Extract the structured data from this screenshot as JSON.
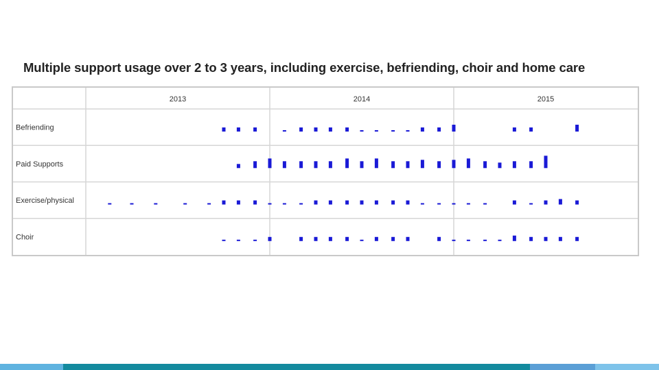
{
  "slide": {
    "title": "Multiple support usage over 2 to 3 years, including exercise, befriending, choir and home care"
  },
  "chart_data": {
    "type": "bar",
    "title": "Multiple support usage over 2 to 3 years, including exercise, befriending, choir and home care",
    "periods": [
      "2013",
      "2014",
      "2015"
    ],
    "x_domain": [
      2013.0,
      2016.0
    ],
    "series_order": [
      "Befriending",
      "Paid Supports",
      "Exercise/physical",
      "Choir"
    ],
    "color": "#1a1ad6",
    "grid": true,
    "series": [
      {
        "name": "Befriending",
        "marks": [
          [
            2013.75,
            1
          ],
          [
            2013.83,
            1
          ],
          [
            2013.92,
            1
          ],
          [
            2014.08,
            0.5
          ],
          [
            2014.17,
            1
          ],
          [
            2014.25,
            1
          ],
          [
            2014.33,
            1
          ],
          [
            2014.42,
            1
          ],
          [
            2014.5,
            0.5
          ],
          [
            2014.58,
            0.5
          ],
          [
            2014.67,
            0.5
          ],
          [
            2014.75,
            0.5
          ],
          [
            2014.83,
            1
          ],
          [
            2014.92,
            1
          ],
          [
            2015.0,
            2
          ],
          [
            2015.33,
            1
          ],
          [
            2015.42,
            1
          ],
          [
            2015.67,
            2
          ]
        ]
      },
      {
        "name": "Paid Supports",
        "marks": [
          [
            2013.83,
            1
          ],
          [
            2013.92,
            2
          ],
          [
            2014.0,
            3
          ],
          [
            2014.08,
            2
          ],
          [
            2014.17,
            2
          ],
          [
            2014.25,
            2
          ],
          [
            2014.33,
            2
          ],
          [
            2014.42,
            3
          ],
          [
            2014.5,
            2
          ],
          [
            2014.58,
            3
          ],
          [
            2014.67,
            2
          ],
          [
            2014.75,
            2
          ],
          [
            2014.83,
            2.5
          ],
          [
            2014.92,
            2
          ],
          [
            2015.0,
            2.5
          ],
          [
            2015.08,
            3
          ],
          [
            2015.17,
            2
          ],
          [
            2015.25,
            1.5
          ],
          [
            2015.33,
            2
          ],
          [
            2015.42,
            2
          ],
          [
            2015.5,
            4
          ]
        ]
      },
      {
        "name": "Exercise/physical",
        "marks": [
          [
            2013.13,
            0.5
          ],
          [
            2013.25,
            0.5
          ],
          [
            2013.38,
            0.5
          ],
          [
            2013.54,
            0.5
          ],
          [
            2013.67,
            0.5
          ],
          [
            2013.75,
            1
          ],
          [
            2013.83,
            1
          ],
          [
            2013.92,
            1
          ],
          [
            2014.0,
            0.5
          ],
          [
            2014.08,
            0.5
          ],
          [
            2014.17,
            0.5
          ],
          [
            2014.25,
            1
          ],
          [
            2014.33,
            1
          ],
          [
            2014.42,
            1
          ],
          [
            2014.5,
            1
          ],
          [
            2014.58,
            1
          ],
          [
            2014.67,
            1
          ],
          [
            2014.75,
            1
          ],
          [
            2014.83,
            0.5
          ],
          [
            2014.92,
            0.5
          ],
          [
            2015.0,
            0.5
          ],
          [
            2015.08,
            0.5
          ],
          [
            2015.17,
            0.5
          ],
          [
            2015.33,
            1
          ],
          [
            2015.42,
            0.5
          ],
          [
            2015.5,
            1
          ],
          [
            2015.58,
            1.5
          ],
          [
            2015.67,
            1
          ]
        ]
      },
      {
        "name": "Choir",
        "marks": [
          [
            2013.75,
            0.5
          ],
          [
            2013.83,
            0.5
          ],
          [
            2013.92,
            0.5
          ],
          [
            2014.0,
            1
          ],
          [
            2014.17,
            1
          ],
          [
            2014.25,
            1
          ],
          [
            2014.33,
            1
          ],
          [
            2014.42,
            1
          ],
          [
            2014.5,
            0.5
          ],
          [
            2014.58,
            1
          ],
          [
            2014.67,
            1
          ],
          [
            2014.75,
            1
          ],
          [
            2014.92,
            1
          ],
          [
            2015.0,
            0.5
          ],
          [
            2015.08,
            0.5
          ],
          [
            2015.17,
            0.5
          ],
          [
            2015.25,
            0.5
          ],
          [
            2015.33,
            1.5
          ],
          [
            2015.42,
            1
          ],
          [
            2015.5,
            1
          ],
          [
            2015.58,
            1
          ],
          [
            2015.67,
            1
          ]
        ]
      }
    ]
  },
  "labels": {
    "Befriending": "Befriending",
    "Paid Supports": "Paid Supports",
    "Exercise/physical": "Exercise/physical",
    "Choir": "Choir"
  },
  "theme": {
    "bar_colors": [
      "#5fb3e0",
      "#138a9e",
      "#5b9fd6",
      "#7ec3ea"
    ]
  }
}
